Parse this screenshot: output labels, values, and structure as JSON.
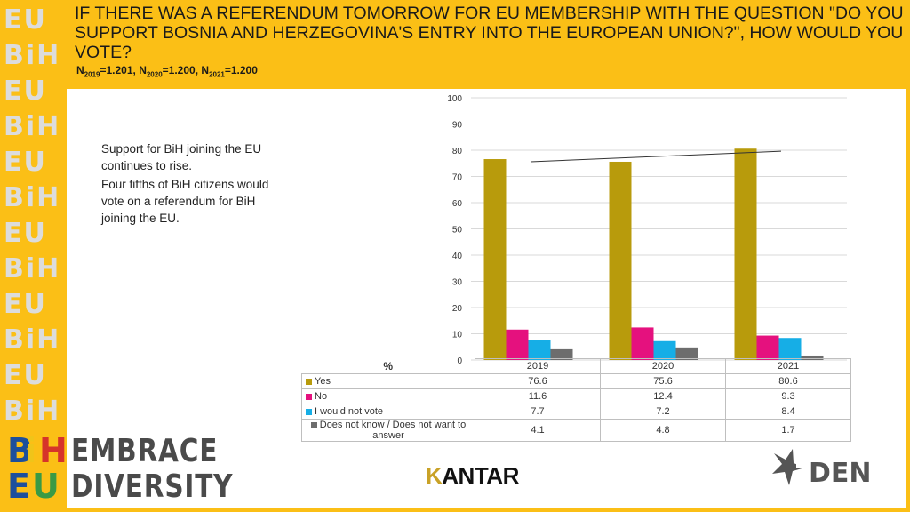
{
  "header": {
    "title": "If there was a referendum tomorrow for EU membership with the question \"Do you support Bosnia and Herzegovina's entry into the European Union?\", how would you vote?",
    "sample": {
      "n1_label": "N",
      "n1_sub": "2019",
      "n1_value": "=1.201, ",
      "n2_label": "N",
      "n2_sub": "2020",
      "n2_value": "=1.200, ",
      "n3_label": "N",
      "n3_sub": "2021",
      "n3_value": "=1.200"
    }
  },
  "side_text": {
    "line1": "Support for BiH joining the EU continues to rise.",
    "line2": "Four fifths of BiH citizens would vote on a referendum for BiH joining the EU."
  },
  "chart_data": {
    "type": "bar",
    "categories": [
      "2019",
      "2020",
      "2021"
    ],
    "series": [
      {
        "name": "Yes",
        "values": [
          76.6,
          75.6,
          80.6
        ],
        "color": "#b89b0c"
      },
      {
        "name": "No",
        "values": [
          11.6,
          12.4,
          9.3
        ],
        "color": "#e5117e"
      },
      {
        "name": "I would not vote",
        "values": [
          7.7,
          7.2,
          8.4
        ],
        "color": "#16aee6"
      },
      {
        "name": "Does not know / Does not want to answer",
        "values": [
          4.1,
          4.8,
          1.7
        ],
        "color": "#6d6d6d"
      }
    ],
    "ylabel": "%",
    "ylim": [
      0,
      100
    ],
    "yticks": [
      0,
      10,
      20,
      30,
      40,
      50,
      60,
      70,
      80,
      90,
      100
    ],
    "grid": true,
    "trendline": {
      "series": "Yes"
    },
    "legend": "data-table-below"
  },
  "logos": {
    "bieu_top": [
      "B",
      "i",
      "H"
    ],
    "bieu_bottom": [
      "E",
      "U"
    ],
    "bieu_colors": [
      "#1d4f9c",
      "#f0c419",
      "#d6332a",
      "#3a9a45"
    ],
    "pattern_rows": [
      "EU",
      "BiH",
      "EU",
      "BiH",
      "EU",
      "BiH",
      "EU",
      "BiH",
      "EU",
      "BiH",
      "EU",
      "BiH"
    ],
    "embrace_line1": "EMBRACE",
    "embrace_line2": "DIVERSITY",
    "kantar_first": "K",
    "kantar_rest": "ANTAR",
    "den": "DEN"
  }
}
